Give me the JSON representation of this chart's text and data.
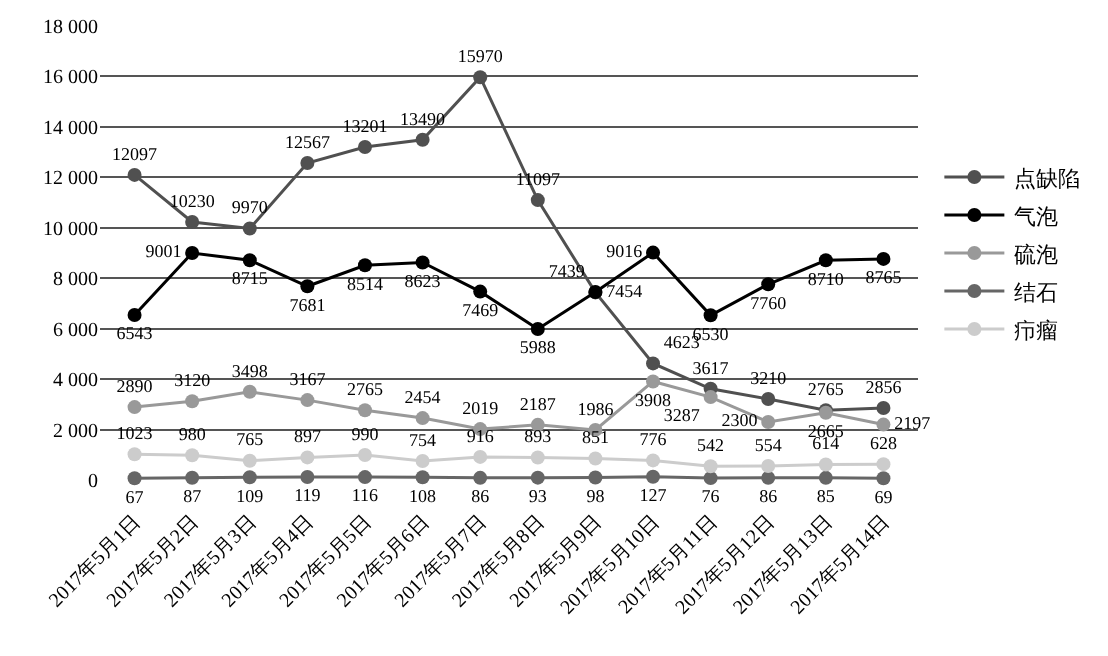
{
  "chart_data": {
    "type": "line",
    "categories": [
      "2017年5月1日",
      "2017年5月2日",
      "2017年5月3日",
      "2017年5月4日",
      "2017年5月5日",
      "2017年5月6日",
      "2017年5月7日",
      "2017年5月8日",
      "2017年5月9日",
      "2017年5月10日",
      "2017年5月11日",
      "2017年5月12日",
      "2017年5月13日",
      "2017年5月14日"
    ],
    "series": [
      {
        "name": "点缺陷",
        "color": "#505050",
        "values": [
          12097,
          10230,
          9970,
          12567,
          13201,
          13490,
          15970,
          11097,
          7439,
          4623,
          3617,
          3210,
          2765,
          2856
        ]
      },
      {
        "name": "气泡",
        "color": "#000000",
        "values": [
          6543,
          9001,
          8715,
          7681,
          8514,
          8623,
          7469,
          5988,
          7454,
          9016,
          6530,
          7760,
          8710,
          8765
        ]
      },
      {
        "name": "硫泡",
        "color": "#999999",
        "values": [
          2890,
          3120,
          3498,
          3167,
          2765,
          2454,
          2019,
          2187,
          1986,
          3908,
          3287,
          2300,
          2665,
          2197
        ]
      },
      {
        "name": "结石",
        "color": "#666666",
        "values": [
          67,
          87,
          109,
          119,
          116,
          108,
          86,
          93,
          98,
          127,
          76,
          86,
          85,
          69
        ]
      },
      {
        "name": "疖瘤",
        "color": "#cccccc",
        "values": [
          1023,
          980,
          765,
          897,
          990,
          754,
          916,
          893,
          851,
          776,
          542,
          554,
          614,
          628
        ]
      }
    ],
    "ylim": [
      0,
      18000
    ],
    "yticks": [
      {
        "value": 0,
        "label": "0"
      },
      {
        "value": 2000,
        "label": "2 000"
      },
      {
        "value": 4000,
        "label": "4 000"
      },
      {
        "value": 6000,
        "label": "6 000"
      },
      {
        "value": 8000,
        "label": "8 000"
      },
      {
        "value": 10000,
        "label": "10 000"
      },
      {
        "value": 12000,
        "label": "12 000"
      },
      {
        "value": 14000,
        "label": "14 000"
      },
      {
        "value": 16000,
        "label": "16 000"
      },
      {
        "value": 18000,
        "label": "18 000"
      }
    ],
    "grid": "y",
    "legend": "right",
    "marker": "circle",
    "line_style": "solid",
    "data_labels": true
  }
}
